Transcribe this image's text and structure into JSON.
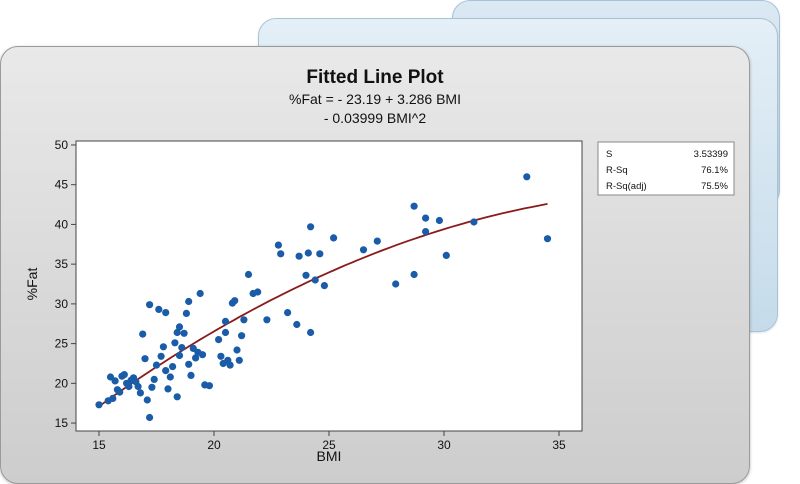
{
  "chart_data": {
    "type": "scatter",
    "title": "Fitted Line Plot",
    "subtitle": [
      "%Fat = - 23.19 + 3.286 BMI",
      "- 0.03999 BMI^2"
    ],
    "xlabel": "BMI",
    "ylabel": "%Fat",
    "xlim": [
      14,
      36
    ],
    "ylim": [
      14,
      50.5
    ],
    "xticks": [
      15,
      20,
      25,
      30,
      35
    ],
    "yticks": [
      15,
      20,
      25,
      30,
      35,
      40,
      45,
      50
    ],
    "grid": false,
    "fit": {
      "type": "quadratic",
      "intercept": -23.19,
      "linear": 3.286,
      "quadratic": -0.03999,
      "x_range": [
        15,
        34.5
      ]
    },
    "stats": [
      {
        "label": "S",
        "value": "3.53399"
      },
      {
        "label": "R-Sq",
        "value": "76.1%"
      },
      {
        "label": "R-Sq(adj)",
        "value": "75.5%"
      }
    ],
    "points": [
      [
        15.0,
        17.3
      ],
      [
        15.4,
        17.8
      ],
      [
        15.6,
        18.1
      ],
      [
        15.5,
        20.8
      ],
      [
        15.7,
        20.3
      ],
      [
        15.8,
        19.2
      ],
      [
        15.9,
        18.9
      ],
      [
        16.0,
        20.9
      ],
      [
        16.1,
        21.1
      ],
      [
        16.2,
        20.0
      ],
      [
        16.3,
        19.6
      ],
      [
        16.4,
        20.4
      ],
      [
        16.5,
        20.7
      ],
      [
        16.6,
        20.2
      ],
      [
        16.7,
        19.6
      ],
      [
        16.8,
        18.8
      ],
      [
        16.9,
        26.2
      ],
      [
        17.0,
        23.1
      ],
      [
        17.1,
        17.9
      ],
      [
        17.2,
        15.7
      ],
      [
        17.3,
        19.5
      ],
      [
        17.2,
        29.9
      ],
      [
        17.4,
        20.5
      ],
      [
        17.5,
        22.3
      ],
      [
        17.6,
        29.3
      ],
      [
        17.7,
        23.4
      ],
      [
        17.8,
        24.6
      ],
      [
        17.9,
        21.6
      ],
      [
        18.0,
        19.3
      ],
      [
        17.9,
        28.9
      ],
      [
        18.1,
        20.8
      ],
      [
        18.2,
        22.1
      ],
      [
        18.3,
        25.1
      ],
      [
        18.4,
        18.3
      ],
      [
        18.5,
        23.5
      ],
      [
        18.4,
        26.4
      ],
      [
        18.5,
        27.1
      ],
      [
        18.6,
        24.5
      ],
      [
        18.7,
        26.3
      ],
      [
        18.8,
        28.8
      ],
      [
        18.9,
        22.4
      ],
      [
        18.9,
        30.3
      ],
      [
        19.0,
        21.0
      ],
      [
        19.1,
        24.4
      ],
      [
        19.2,
        23.2
      ],
      [
        19.3,
        23.9
      ],
      [
        19.4,
        31.3
      ],
      [
        19.5,
        23.6
      ],
      [
        19.6,
        19.8
      ],
      [
        19.8,
        19.7
      ],
      [
        20.2,
        25.5
      ],
      [
        20.3,
        23.4
      ],
      [
        20.4,
        22.5
      ],
      [
        20.5,
        27.8
      ],
      [
        20.5,
        26.4
      ],
      [
        20.6,
        22.9
      ],
      [
        20.7,
        22.3
      ],
      [
        20.8,
        30.1
      ],
      [
        20.9,
        30.4
      ],
      [
        21.0,
        24.2
      ],
      [
        21.1,
        22.9
      ],
      [
        21.2,
        26.0
      ],
      [
        21.3,
        28.0
      ],
      [
        21.5,
        33.7
      ],
      [
        21.7,
        31.3
      ],
      [
        21.9,
        31.5
      ],
      [
        22.3,
        28.0
      ],
      [
        22.8,
        37.4
      ],
      [
        22.9,
        36.3
      ],
      [
        23.2,
        28.9
      ],
      [
        23.6,
        27.4
      ],
      [
        23.7,
        36.0
      ],
      [
        24.0,
        33.6
      ],
      [
        24.1,
        36.4
      ],
      [
        24.2,
        39.7
      ],
      [
        24.2,
        26.4
      ],
      [
        24.4,
        33.0
      ],
      [
        24.6,
        36.3
      ],
      [
        24.8,
        32.3
      ],
      [
        25.2,
        38.3
      ],
      [
        26.5,
        36.8
      ],
      [
        27.1,
        37.9
      ],
      [
        27.9,
        32.5
      ],
      [
        28.7,
        42.3
      ],
      [
        28.7,
        33.7
      ],
      [
        29.2,
        40.8
      ],
      [
        29.2,
        39.1
      ],
      [
        29.8,
        40.5
      ],
      [
        30.1,
        36.1
      ],
      [
        31.3,
        40.3
      ],
      [
        33.6,
        46.0
      ],
      [
        34.5,
        38.2
      ]
    ],
    "colors": {
      "points": "#1a5ca8",
      "fit_line": "#8b1a1a"
    }
  }
}
